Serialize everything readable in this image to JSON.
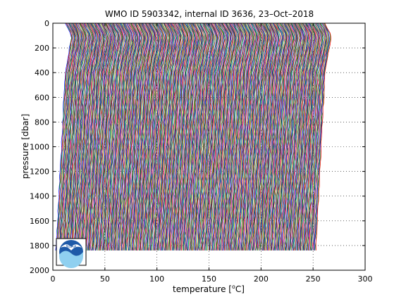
{
  "chart_data": {
    "type": "line",
    "title": "WMO ID 5903342, internal ID 3636, 23–Oct–2018",
    "xlabel_main": "temperature [",
    "xlabel_unit": "C]",
    "xlabel_deg": "o",
    "ylabel": "pressure [dbar]",
    "xlim": [
      0,
      300
    ],
    "ylim": [
      0,
      2000
    ],
    "y_reversed": true,
    "xticks": [
      0,
      50,
      100,
      150,
      200,
      250,
      300
    ],
    "yticks": [
      0,
      200,
      400,
      600,
      800,
      1000,
      1200,
      1400,
      1600,
      1800,
      2000
    ],
    "grid": "dotted",
    "x_offset_per_profile": 0.5,
    "profile_count": 500,
    "max_pressure": 1840,
    "profile_colors": [
      "#0000ff",
      "#008000",
      "#ff0000",
      "#00bfbf",
      "#bf00bf",
      "#bfbf00",
      "#404040"
    ],
    "logo": "noaa-logo"
  }
}
